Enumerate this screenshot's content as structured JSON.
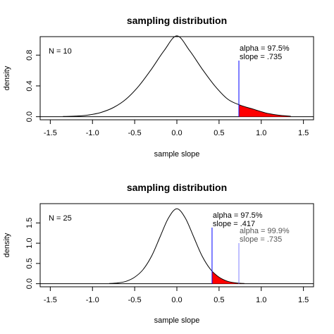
{
  "chart_data": [
    {
      "type": "line",
      "title": "sampling distribution",
      "xlabel": "sample slope",
      "ylabel": "density",
      "xlim": [
        -1.5,
        1.5
      ],
      "ylim": [
        0.0,
        1.0
      ],
      "xticks": [
        "-1.5",
        "-1.0",
        "-0.5",
        "0.0",
        "0.5",
        "1.0",
        "1.5"
      ],
      "yticks": [
        "0.0",
        "0.4",
        "0.8"
      ],
      "series": [
        {
          "x": [
            -1.35,
            -1.2,
            -1.05,
            -0.9,
            -0.75,
            -0.6,
            -0.45,
            -0.3,
            -0.15,
            0.0,
            0.15,
            0.3,
            0.45,
            0.6,
            0.75,
            0.9,
            1.05,
            1.2,
            1.35
          ],
          "y": [
            0.003,
            0.008,
            0.022,
            0.055,
            0.12,
            0.23,
            0.4,
            0.62,
            0.86,
            1.05,
            0.86,
            0.62,
            0.4,
            0.23,
            0.15,
            0.1,
            0.05,
            0.02,
            0.006
          ]
        }
      ],
      "panel_label": "N = 10",
      "annotations": [
        {
          "line1": "alpha = 97.5%",
          "line2": "slope = .735",
          "x": 0.735,
          "color": "#0000ff"
        }
      ],
      "shaded_from": 0.735,
      "shade_color": "#ff0000",
      "grid": false,
      "legend": "none"
    },
    {
      "type": "line",
      "title": "sampling distribution",
      "xlabel": "sample slope",
      "ylabel": "density",
      "xlim": [
        -1.5,
        1.5
      ],
      "ylim": [
        0.0,
        1.9
      ],
      "xticks": [
        "-1.5",
        "-1.0",
        "-0.5",
        "0.0",
        "0.5",
        "1.0",
        "1.5"
      ],
      "yticks": [
        "0.0",
        "0.5",
        "1.0",
        "1.5"
      ],
      "series": [
        {
          "x": [
            -0.8,
            -0.7,
            -0.6,
            -0.5,
            -0.4,
            -0.3,
            -0.2,
            -0.1,
            0.0,
            0.1,
            0.2,
            0.3,
            0.4,
            0.5,
            0.6,
            0.7,
            0.8
          ],
          "y": [
            0.005,
            0.02,
            0.06,
            0.16,
            0.35,
            0.68,
            1.15,
            1.62,
            1.85,
            1.62,
            1.15,
            0.68,
            0.35,
            0.16,
            0.06,
            0.02,
            0.005
          ]
        }
      ],
      "panel_label": "N = 25",
      "annotations": [
        {
          "line1": "alpha = 97.5%",
          "line2": "slope = .417",
          "x": 0.417,
          "color": "#0000ff"
        },
        {
          "line1": "alpha = 99.9%",
          "line2": "slope = .735",
          "x": 0.735,
          "color": "#8080ff"
        }
      ],
      "shaded_from": 0.417,
      "shade_color": "#ff0000",
      "grid": false,
      "legend": "none"
    }
  ]
}
